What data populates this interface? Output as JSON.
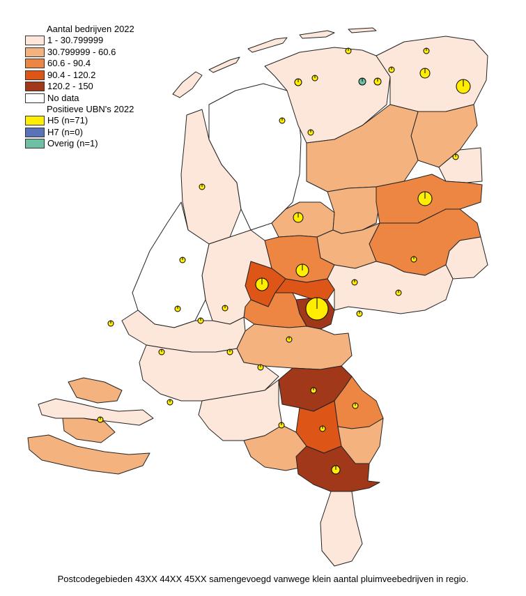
{
  "legend": {
    "title_companies": "Aantal bedrijven 2022",
    "classes": [
      {
        "label": "1 - 30.799999",
        "color": "#fde7da"
      },
      {
        "label": "30.799999 - 60.6",
        "color": "#f4b27f"
      },
      {
        "label": "60.6 - 90.4",
        "color": "#ec8642"
      },
      {
        "label": "90.4 - 120.2",
        "color": "#dd5517"
      },
      {
        "label": "120.2 - 150",
        "color": "#a2381a"
      },
      {
        "label": "No data",
        "color": "#ffffff"
      }
    ],
    "title_positive": "Positieve UBN's 2022",
    "positive": [
      {
        "label": "H5 (n=71)",
        "color": "#ffee00"
      },
      {
        "label": "H7 (n=0)",
        "color": "#5a72b8"
      },
      {
        "label": "Overig (n=1)",
        "color": "#6fbfa5"
      }
    ]
  },
  "caption": "Postcodegebieden 43XX 44XX 45XX  samengevoegd vanwege klein aantal pluimveebedrijven in regio.",
  "colors": {
    "outline": "#222222",
    "marker_outline": "#000000"
  }
}
